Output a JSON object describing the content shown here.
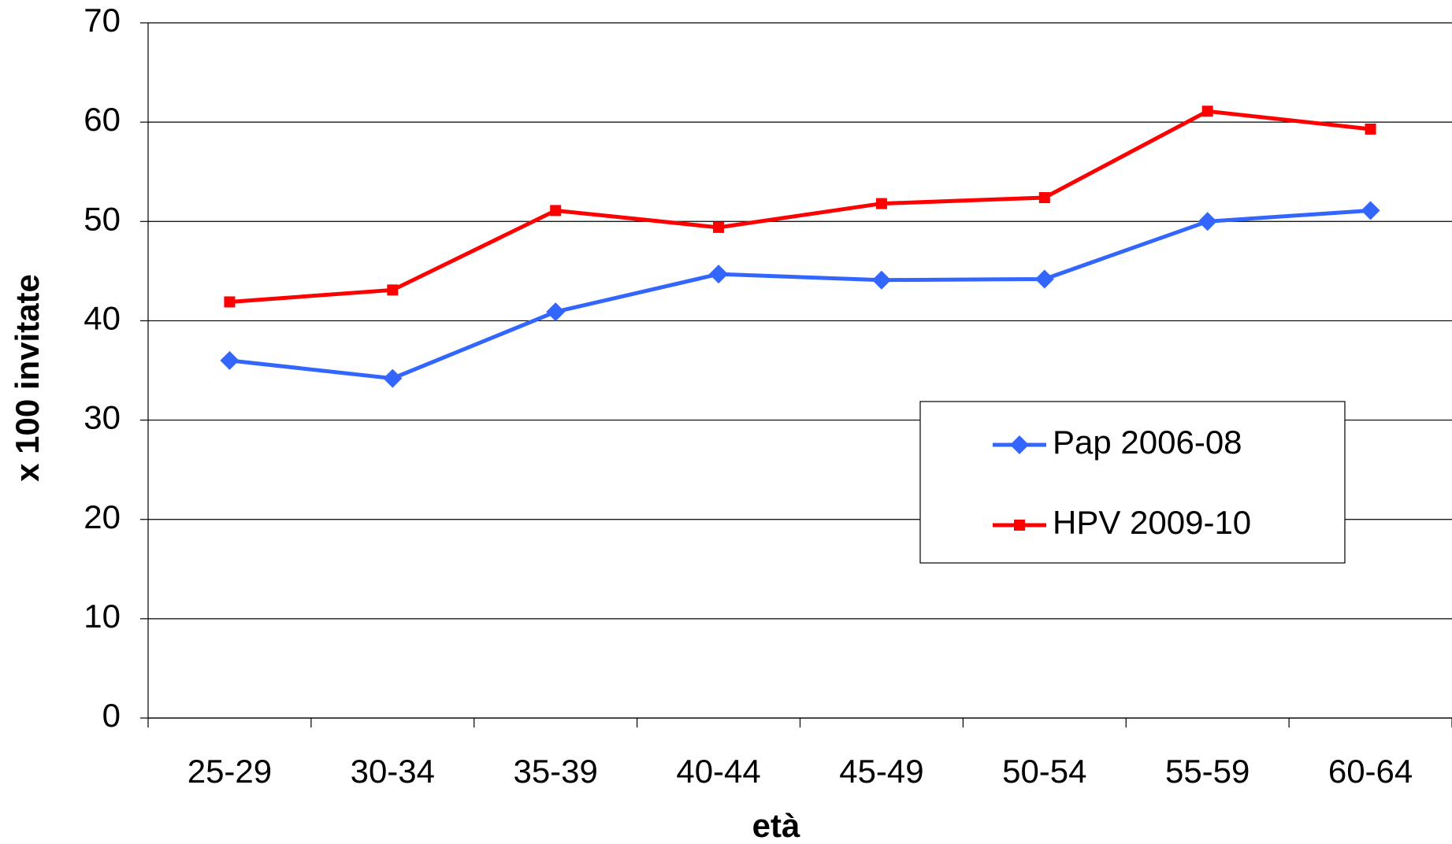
{
  "chart_data": {
    "type": "line",
    "x_label": "età",
    "y_label": "x 100 invitate",
    "categories": [
      "25-29",
      "30-34",
      "35-39",
      "40-44",
      "45-49",
      "50-54",
      "55-59",
      "60-64"
    ],
    "series": [
      {
        "name": "Pap 2006-08",
        "color": "#3366ff",
        "marker": "diamond",
        "values": [
          36,
          34.2,
          40.9,
          44.7,
          44.1,
          44.2,
          50,
          51.1
        ]
      },
      {
        "name": "HPV 2009-10",
        "color": "#ff0000",
        "marker": "square",
        "values": [
          41.9,
          43.1,
          51.1,
          49.4,
          51.8,
          52.4,
          61.1,
          59.3
        ]
      }
    ],
    "ylim": [
      0,
      70
    ],
    "yticks": [
      0,
      10,
      20,
      30,
      40,
      50,
      60,
      70
    ],
    "grid": true,
    "legend": "right"
  }
}
